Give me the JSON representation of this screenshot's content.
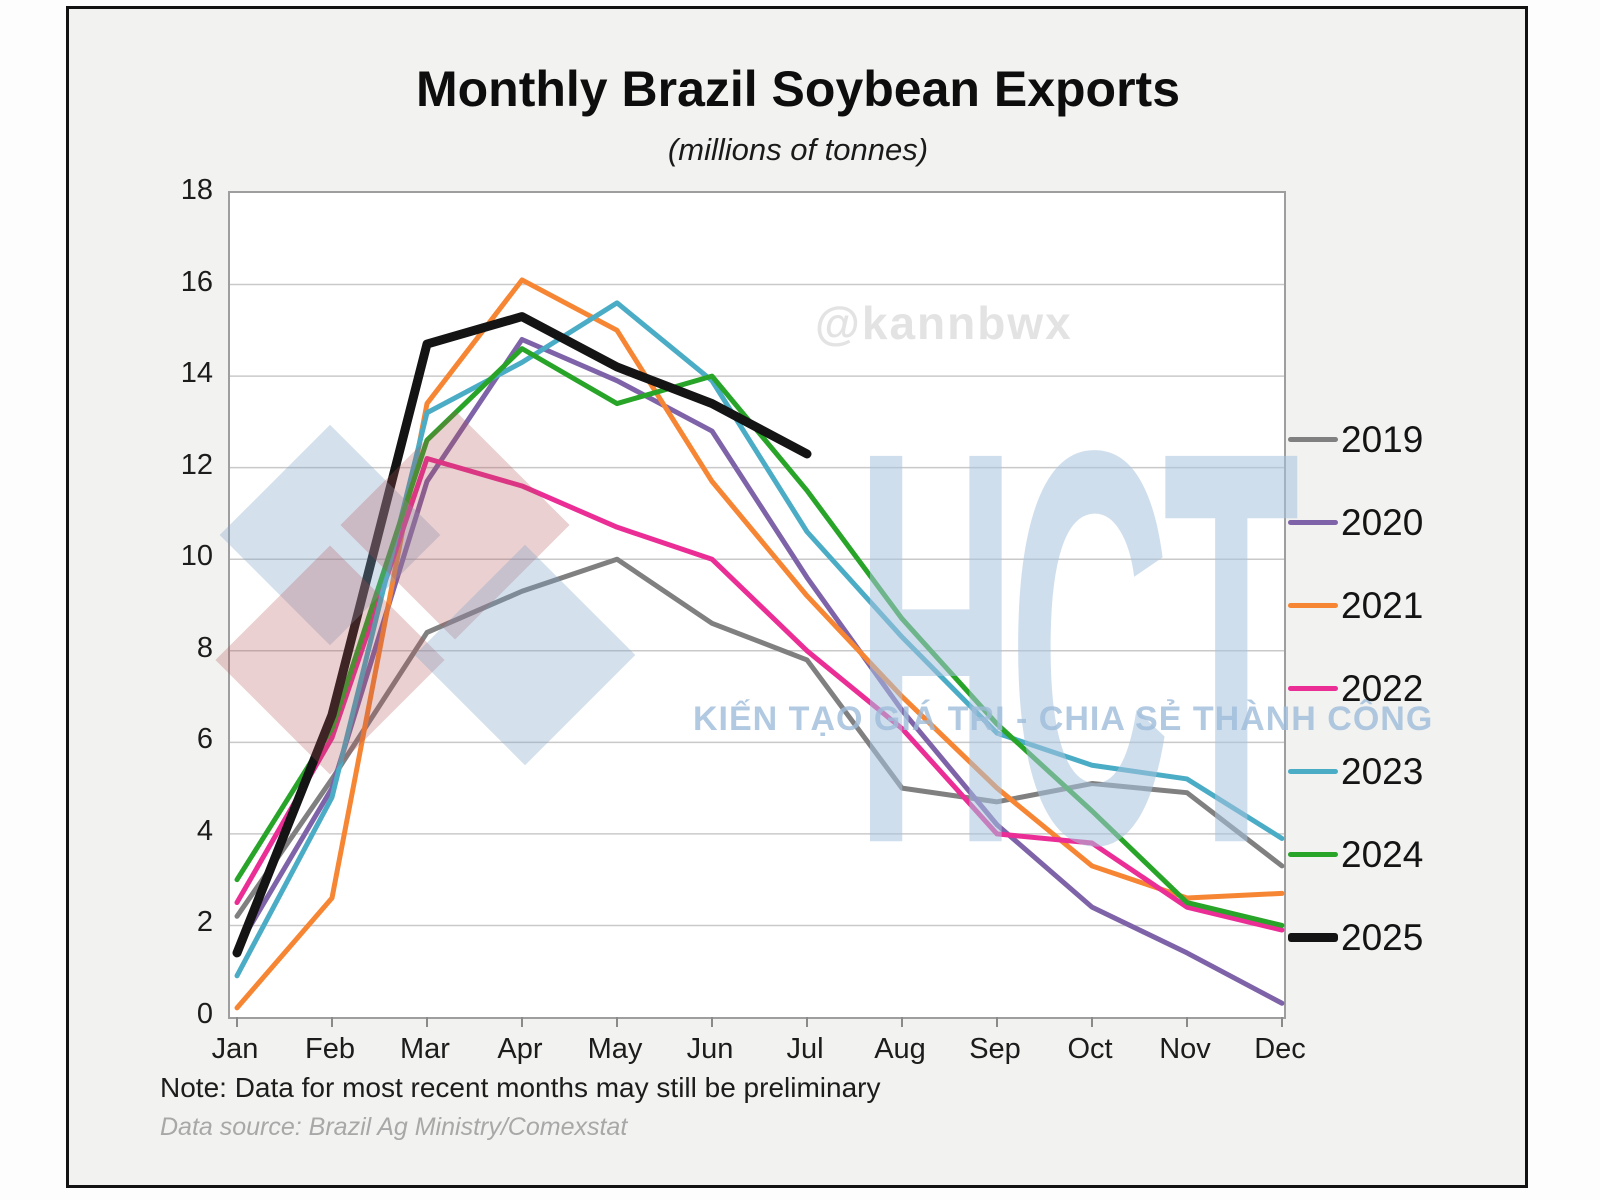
{
  "title": "Monthly Brazil Soybean Exports",
  "subtitle": "(millions of tonnes)",
  "note": "Note: Data for most recent months may still be preliminary",
  "source": "Data source: Brazil Ag Ministry/Comexstat",
  "watermark": {
    "handle": "@kannbwx",
    "logo_text": "HCT",
    "slogan": "KIẾN TẠO GIÁ TRỊ - CHIA SẺ THÀNH CÔNG",
    "diamond_red": "rgba(176,80,80,0.27)",
    "diamond_blue": "rgba(128,160,200,0.33)"
  },
  "chart_data": {
    "type": "line",
    "categories": [
      "Jan",
      "Feb",
      "Mar",
      "Apr",
      "May",
      "Jun",
      "Jul",
      "Aug",
      "Sep",
      "Oct",
      "Nov",
      "Dec"
    ],
    "ylim": [
      0,
      18
    ],
    "ytick_step": 2,
    "grid": true,
    "legend_position": "right",
    "gridline_color": "#c9c9c9",
    "tick_color": "#8a8a8a",
    "series": [
      {
        "name": "2019",
        "color": "#808080",
        "width": 5,
        "values": [
          2.2,
          5.2,
          8.4,
          9.3,
          10.0,
          8.6,
          7.8,
          5.0,
          4.7,
          5.1,
          4.9,
          3.3
        ]
      },
      {
        "name": "2020",
        "color": "#7E63A8",
        "width": 5,
        "values": [
          1.5,
          5.0,
          11.7,
          14.8,
          13.9,
          12.8,
          9.6,
          6.7,
          4.2,
          2.4,
          1.4,
          0.3
        ]
      },
      {
        "name": "2021",
        "color": "#F68633",
        "width": 5,
        "values": [
          0.2,
          2.6,
          13.4,
          16.1,
          15.0,
          11.7,
          9.2,
          7.0,
          5.0,
          3.3,
          2.6,
          2.7
        ]
      },
      {
        "name": "2022",
        "color": "#EB2D96",
        "width": 5,
        "values": [
          2.5,
          6.1,
          12.2,
          11.6,
          10.7,
          10.0,
          8.0,
          6.3,
          4.0,
          3.8,
          2.4,
          1.9
        ]
      },
      {
        "name": "2023",
        "color": "#4BACC6",
        "width": 5,
        "values": [
          0.9,
          4.8,
          13.2,
          14.3,
          15.6,
          13.9,
          10.6,
          8.3,
          6.2,
          5.5,
          5.2,
          3.9
        ]
      },
      {
        "name": "2024",
        "color": "#28A428",
        "width": 5,
        "values": [
          3.0,
          6.3,
          12.6,
          14.6,
          13.4,
          14.0,
          11.5,
          8.7,
          6.4,
          4.5,
          2.5,
          2.0
        ]
      },
      {
        "name": "2025",
        "color": "#141414",
        "width": 9,
        "values": [
          1.4,
          6.6,
          14.7,
          15.3,
          14.2,
          13.4,
          12.3
        ]
      }
    ]
  }
}
